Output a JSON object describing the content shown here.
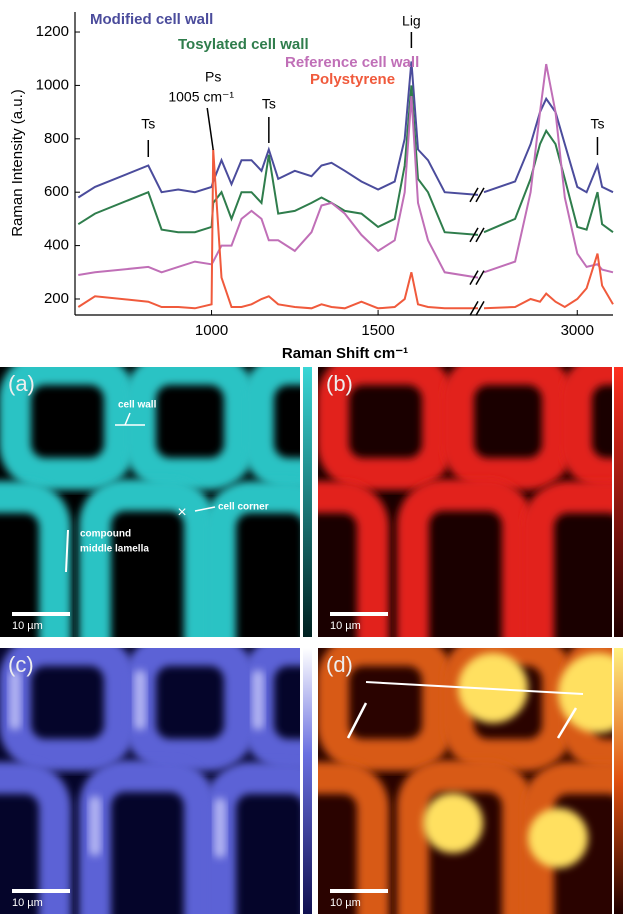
{
  "chart_data": {
    "type": "line",
    "y_label": "Raman Intensity (a.u.)",
    "x_label": "Raman Shift cm⁻¹",
    "x": [
      600,
      650,
      810,
      850,
      900,
      950,
      1000,
      1005,
      1030,
      1060,
      1090,
      1120,
      1150,
      1172,
      1200,
      1250,
      1300,
      1330,
      1360,
      1400,
      1450,
      1500,
      1550,
      1580,
      1600,
      1620,
      1650,
      1700,
      1800,
      2700,
      2800,
      2850,
      2880,
      2900,
      2930,
      2960,
      3000,
      3030,
      3065,
      3080,
      3115
    ],
    "xlim": [
      590,
      3115
    ],
    "x_break": [
      1800,
      2700
    ],
    "xticks": [
      1000,
      1500,
      3000
    ],
    "ylim": [
      140,
      1275
    ],
    "yticks": [
      200,
      400,
      600,
      800,
      1000,
      1200
    ],
    "series": [
      {
        "name": "Modified cell wall",
        "color": "#4b4c9c",
        "values": [
          580,
          620,
          700,
          600,
          610,
          600,
          620,
          640,
          720,
          630,
          720,
          720,
          680,
          760,
          650,
          680,
          660,
          700,
          710,
          680,
          640,
          610,
          640,
          800,
          1090,
          760,
          720,
          600,
          590,
          600,
          640,
          780,
          900,
          950,
          900,
          780,
          620,
          600,
          700,
          620,
          600
        ]
      },
      {
        "name": "Tosylated cell wall",
        "color": "#2f7d4c",
        "values": [
          480,
          520,
          600,
          460,
          450,
          450,
          470,
          560,
          600,
          500,
          600,
          600,
          560,
          740,
          520,
          530,
          560,
          580,
          560,
          530,
          520,
          470,
          500,
          700,
          1000,
          650,
          600,
          450,
          440,
          450,
          500,
          650,
          780,
          830,
          780,
          650,
          470,
          460,
          600,
          480,
          450
        ]
      },
      {
        "name": "Reference cell wall",
        "color": "#c06fb7",
        "values": [
          290,
          300,
          320,
          300,
          320,
          340,
          330,
          340,
          400,
          400,
          500,
          530,
          500,
          420,
          420,
          380,
          450,
          550,
          560,
          520,
          440,
          380,
          420,
          600,
          960,
          560,
          420,
          300,
          280,
          300,
          340,
          600,
          900,
          1080,
          900,
          580,
          370,
          320,
          330,
          310,
          300
        ]
      },
      {
        "name": "Polystyrene",
        "color": "#f05a3c",
        "values": [
          170,
          210,
          190,
          170,
          170,
          165,
          180,
          760,
          280,
          170,
          170,
          180,
          200,
          210,
          180,
          170,
          165,
          180,
          170,
          165,
          190,
          165,
          170,
          200,
          300,
          180,
          170,
          165,
          165,
          165,
          170,
          200,
          190,
          220,
          190,
          170,
          200,
          240,
          370,
          250,
          180
        ]
      }
    ],
    "annotations": [
      {
        "label": "Ts",
        "x": 810
      },
      {
        "label": "Ps",
        "sublabel": "1005 cm⁻¹",
        "x": 1005
      },
      {
        "label": "Ts",
        "x": 1172
      },
      {
        "label": "Lig",
        "x": 1600
      },
      {
        "label": "Ts",
        "x": 3065
      }
    ]
  },
  "panels": [
    {
      "label": "(a)",
      "scale_bar": "10 µm",
      "notes": [
        "cell wall",
        "cell corner",
        "compound",
        "middle lamella"
      ]
    },
    {
      "label": "(b)",
      "scale_bar": "10 µm"
    },
    {
      "label": "(c)",
      "scale_bar": "10 µm"
    },
    {
      "label": "(d)",
      "scale_bar": "10 µm"
    }
  ]
}
